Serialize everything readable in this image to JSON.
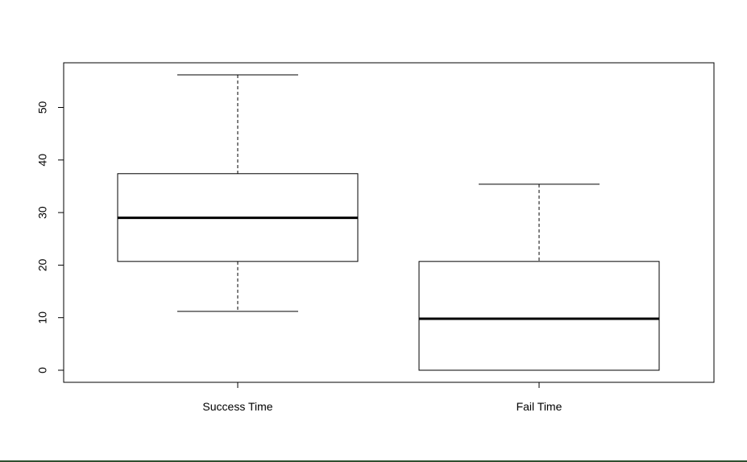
{
  "chart_data": {
    "type": "boxplot",
    "title": "",
    "xlabel": "",
    "ylabel": "",
    "categories": [
      "Success Time",
      "Fail Time"
    ],
    "boxes": [
      {
        "label": "Success Time",
        "whisker_low": 11.2,
        "q1": 20.7,
        "median": 29.0,
        "q3": 37.4,
        "whisker_high": 56.2
      },
      {
        "label": "Fail Time",
        "whisker_low": 0.0,
        "q1": 0.0,
        "median": 9.8,
        "q3": 20.7,
        "whisker_high": 35.4
      }
    ],
    "ylim": [
      -2.3,
      58.5
    ],
    "y_ticks": [
      0,
      10,
      20,
      30,
      40,
      50
    ],
    "grid": false,
    "legend": "none",
    "colors": {
      "box_fill": "#ffffff",
      "stroke": "#000000",
      "median": "#000000"
    }
  }
}
